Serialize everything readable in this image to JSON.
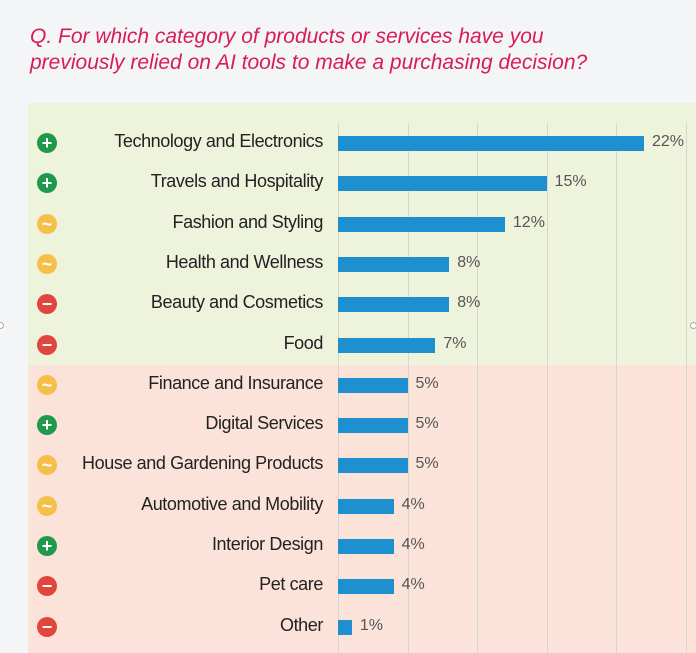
{
  "question": {
    "line1": "Q. For which category of products or services have you",
    "line2": "previously relied on AI tools to make a purchasing decision?"
  },
  "colors": {
    "title": "#d81b5a",
    "bar": "#1e8fcf",
    "band_top": "#eef3dc",
    "band_bottom": "#fce3d9",
    "positive_icon": "#1f9a4d",
    "neutral_icon": "#f5c04a",
    "negative_icon": "#e0463e"
  },
  "chart_data": {
    "type": "bar",
    "orientation": "horizontal",
    "title": "Q. For which category of products or services have you previously relied on AI tools to make a purchasing decision?",
    "xlim": [
      0,
      25
    ],
    "grid": true,
    "categories": [
      "Technology and Electronics",
      "Travels and Hospitality",
      "Fashion and Styling",
      "Health and Wellness",
      "Beauty and Cosmetics",
      "Food",
      "Finance and Insurance",
      "Digital Services",
      "House and Gardening Products",
      "Automotive and Mobility",
      "Interior Design",
      "Pet care",
      "Other"
    ],
    "values": [
      22,
      15,
      12,
      8,
      8,
      7,
      5,
      5,
      5,
      4,
      4,
      4,
      1
    ],
    "value_labels": [
      "22%",
      "15%",
      "12%",
      "8%",
      "8%",
      "7%",
      "5%",
      "5%",
      "5%",
      "4%",
      "4%",
      "4%",
      "1%"
    ],
    "icons": [
      "plus-circle-icon",
      "plus-circle-icon",
      "tilde-circle-icon",
      "tilde-circle-icon",
      "minus-circle-icon",
      "minus-circle-icon",
      "tilde-circle-icon",
      "plus-circle-icon",
      "tilde-circle-icon",
      "tilde-circle-icon",
      "plus-circle-icon",
      "minus-circle-icon",
      "minus-circle-icon"
    ]
  }
}
